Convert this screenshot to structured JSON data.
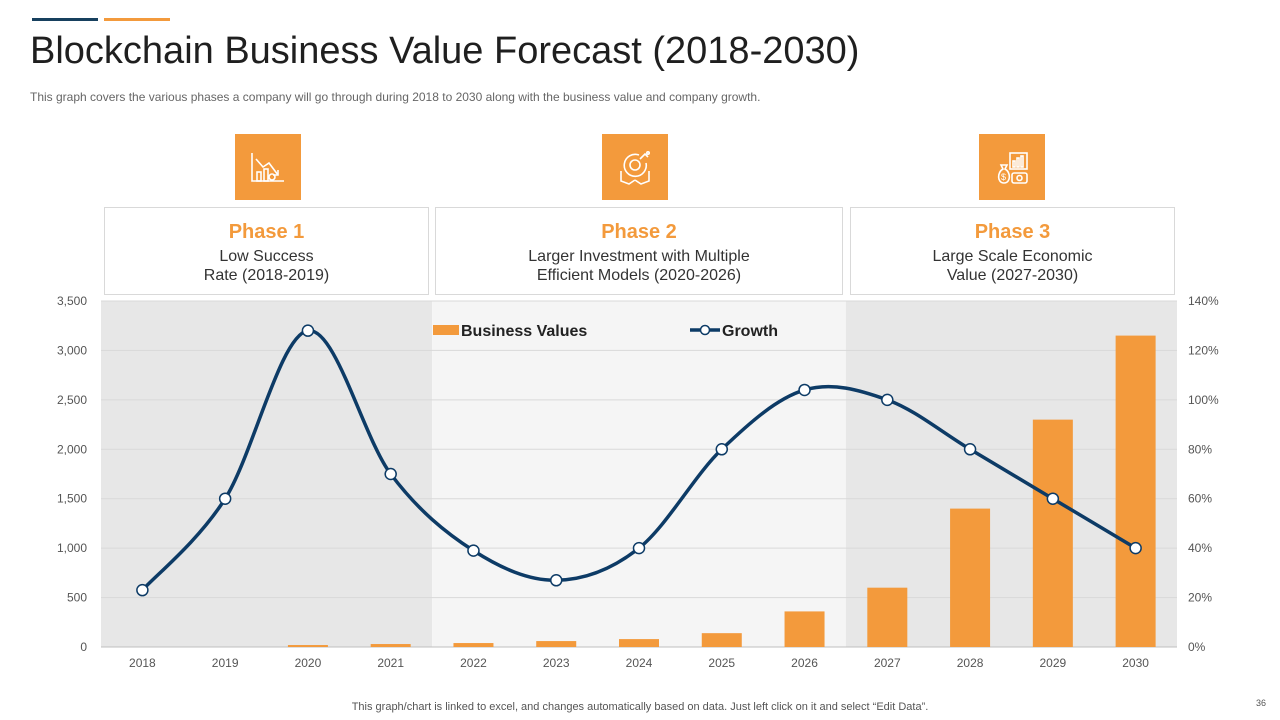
{
  "header": {
    "title": "Blockchain Business Value Forecast (2018-2030)",
    "subtitle": "This graph covers the various  phases a company will go through during 2018 to 2030 along with the business value and company growth."
  },
  "phases": [
    {
      "title": "Phase 1",
      "line1": "Low Success",
      "line2": "Rate (2018-2019)",
      "icon": "declining-chart-icon"
    },
    {
      "title": "Phase 2",
      "line1": "Larger Investment  with Multiple",
      "line2": "Efficient Models (2020-2026)",
      "icon": "investment-growth-icon"
    },
    {
      "title": "Phase 3",
      "line1": "Large Scale Economic",
      "line2": "Value (2027-2030)",
      "icon": "economic-value-icon"
    }
  ],
  "colors": {
    "accent": "#f39a3c",
    "navy": "#0d3b66",
    "band_dark": "#e7e7e7",
    "band_light": "#f5f5f5"
  },
  "chart_data": {
    "type": "bar",
    "categories": [
      "2018",
      "2019",
      "2020",
      "2021",
      "2022",
      "2023",
      "2024",
      "2025",
      "2026",
      "2027",
      "2028",
      "2029",
      "2030"
    ],
    "series": [
      {
        "name": "Business Values",
        "type": "bar",
        "axis": "left",
        "values": [
          0,
          0,
          20,
          30,
          40,
          60,
          80,
          140,
          360,
          600,
          1400,
          2300,
          3150
        ]
      },
      {
        "name": "Growth",
        "type": "line",
        "axis": "right",
        "values": [
          23,
          60,
          128,
          70,
          39,
          27,
          40,
          80,
          104,
          100,
          80,
          60,
          40
        ]
      }
    ],
    "ylim": [
      0,
      3500
    ],
    "yticks": [
      "0",
      "500",
      "1,000",
      "1,500",
      "2,000",
      "2,500",
      "3,000",
      "3,500"
    ],
    "y2lim": [
      0,
      140
    ],
    "y2ticks": [
      "0%",
      "20%",
      "40%",
      "60%",
      "80%",
      "100%",
      "120%",
      "140%"
    ],
    "legend_position": "top",
    "grid": true
  },
  "footer": {
    "note": "This graph/chart is linked to excel,  and changes automatically based on data. Just left click on it and select “Edit Data”.",
    "page_number": "36"
  }
}
